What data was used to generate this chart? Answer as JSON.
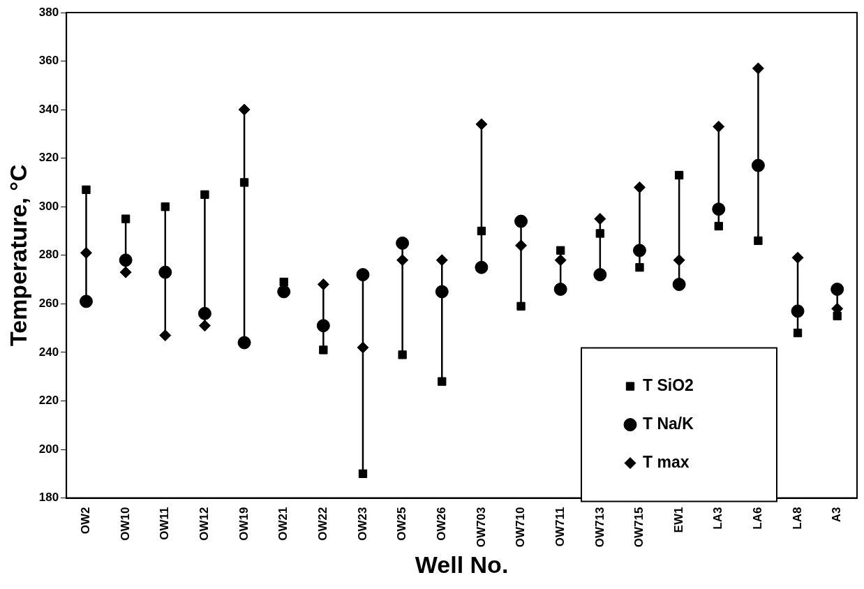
{
  "chart_data": {
    "type": "scatter",
    "xlabel": "Well No.",
    "ylabel": "Temperature, °C",
    "categories": [
      "OW2",
      "OW10",
      "OW11",
      "OW12",
      "OW19",
      "OW21",
      "OW22",
      "OW23",
      "OW25",
      "OW26",
      "OW703",
      "OW710",
      "OW711",
      "OW713",
      "OW715",
      "EW1",
      "LA3",
      "LA6",
      "LA8",
      "A3"
    ],
    "series": [
      {
        "name": "T SiO2",
        "color": "#000000",
        "marker": "square",
        "values": [
          307,
          295,
          300,
          305,
          310,
          269,
          241,
          190,
          239,
          228,
          290,
          259,
          282,
          289,
          275,
          313,
          292,
          286,
          248,
          255
        ]
      },
      {
        "name": "T Na/K",
        "color": "#000000",
        "marker": "circle",
        "values": [
          261,
          278,
          273,
          256,
          244,
          265,
          251,
          272,
          285,
          265,
          275,
          294,
          266,
          272,
          282,
          268,
          299,
          317,
          257,
          266
        ]
      },
      {
        "name": "T max",
        "color": "#000000",
        "marker": "diamond",
        "values": [
          281,
          273,
          247,
          251,
          340,
          null,
          268,
          242,
          278,
          278,
          334,
          284,
          278,
          295,
          308,
          278,
          333,
          357,
          279,
          258
        ]
      }
    ],
    "ylim": [
      180,
      380
    ],
    "yticks": [
      180,
      200,
      220,
      240,
      260,
      280,
      300,
      320,
      340,
      360,
      380
    ],
    "grid": false,
    "legend": "bottom right"
  }
}
